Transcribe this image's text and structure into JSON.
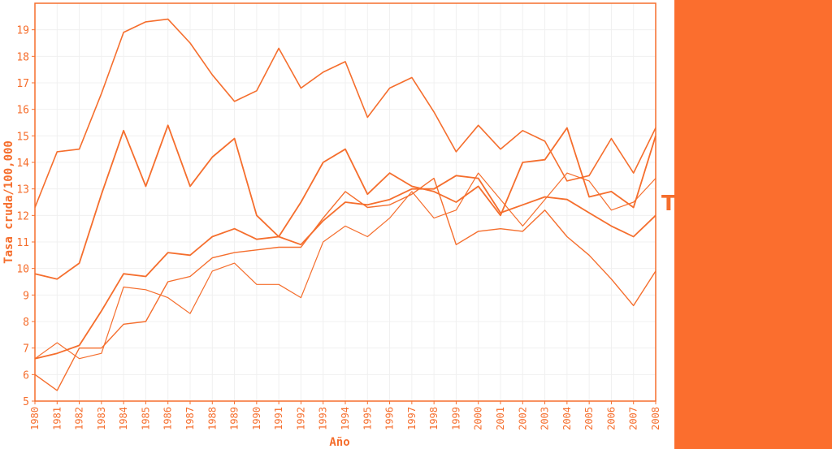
{
  "colors": {
    "accent": "#f56e2d",
    "panel": "#fb6e2e",
    "grid": "#f0f0f0"
  },
  "side_panel": {
    "letter": "T"
  },
  "chart_data": {
    "type": "line",
    "title": "",
    "xlabel": "Año",
    "ylabel": "Tasa cruda/100,000",
    "x": [
      1980,
      1981,
      1982,
      1983,
      1984,
      1985,
      1986,
      1987,
      1988,
      1989,
      1990,
      1991,
      1992,
      1993,
      1994,
      1995,
      1996,
      1997,
      1998,
      1999,
      2000,
      2001,
      2002,
      2003,
      2004,
      2005,
      2006,
      2007,
      2008
    ],
    "xlim": [
      1980,
      2008
    ],
    "ylim": [
      5,
      20
    ],
    "yticks": [
      5,
      6,
      7,
      8,
      9,
      10,
      11,
      12,
      13,
      14,
      15,
      16,
      17,
      18,
      19
    ],
    "grid": true,
    "legend": "none",
    "series": [
      {
        "stroke": 1.6,
        "values": [
          12.3,
          14.4,
          14.5,
          16.6,
          18.9,
          19.3,
          19.4,
          18.5,
          17.3,
          16.3,
          16.7,
          18.3,
          16.8,
          17.4,
          17.8,
          15.7,
          16.8,
          17.2,
          15.9,
          14.4,
          15.4,
          14.5,
          15.2,
          14.8,
          13.3,
          13.5,
          14.9,
          13.6,
          15.3
        ]
      },
      {
        "stroke": 1.8,
        "values": [
          9.8,
          9.6,
          10.2,
          12.8,
          15.2,
          13.1,
          15.4,
          13.1,
          14.2,
          14.9,
          12.0,
          11.2,
          12.5,
          14.0,
          14.5,
          12.8,
          13.6,
          13.1,
          12.9,
          12.5,
          13.1,
          12.0,
          14.0,
          14.1,
          15.3,
          12.7,
          12.9,
          12.3,
          15.0
        ]
      },
      {
        "stroke": 1.8,
        "values": [
          6.6,
          6.8,
          7.1,
          8.4,
          9.8,
          9.7,
          10.6,
          10.5,
          11.2,
          11.5,
          11.1,
          11.2,
          10.9,
          11.8,
          12.5,
          12.4,
          12.6,
          13.0,
          13.0,
          13.5,
          13.4,
          12.1,
          12.4,
          12.7,
          12.6,
          12.1,
          11.6,
          11.2,
          12.0
        ]
      },
      {
        "stroke": 1.2,
        "values": [
          6.6,
          7.2,
          6.6,
          6.8,
          9.3,
          9.2,
          8.9,
          8.3,
          9.9,
          10.2,
          9.4,
          9.4,
          8.9,
          11.0,
          11.6,
          11.2,
          11.9,
          12.9,
          11.9,
          12.2,
          13.6,
          12.6,
          11.6,
          12.6,
          13.6,
          13.3,
          12.2,
          12.5,
          13.4
        ]
      },
      {
        "stroke": 1.4,
        "values": [
          6.0,
          5.4,
          7.0,
          7.0,
          7.9,
          8.0,
          9.5,
          9.7,
          10.4,
          10.6,
          10.7,
          10.8,
          10.8,
          11.9,
          12.9,
          12.3,
          12.4,
          12.8,
          13.4,
          10.9,
          11.4,
          11.5,
          11.4,
          12.2,
          11.2,
          10.5,
          9.6,
          8.6,
          9.9
        ]
      }
    ]
  }
}
